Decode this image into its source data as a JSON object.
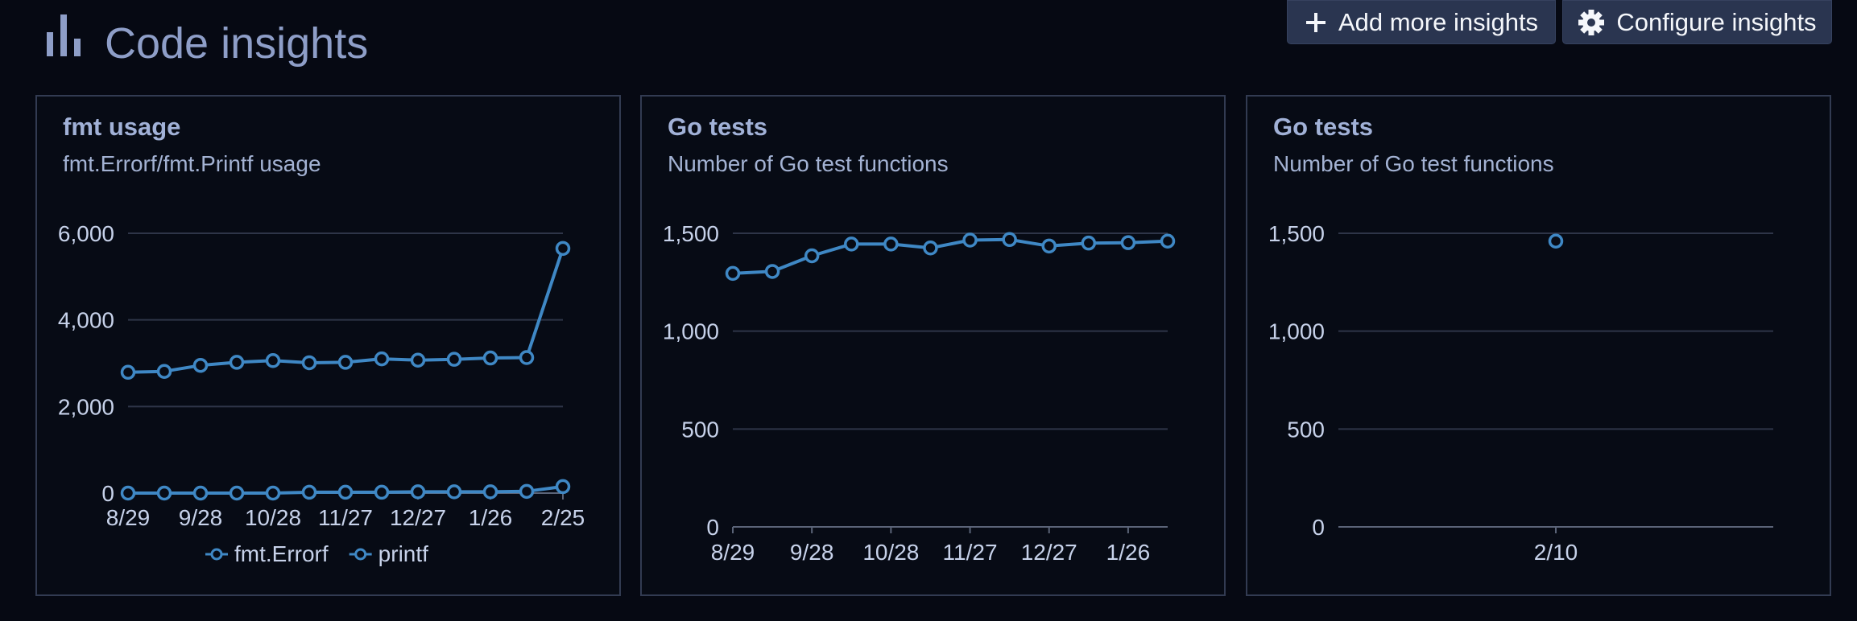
{
  "header": {
    "title": "Code insights",
    "icon": "bar-chart-icon",
    "add_button_label": "Add more insights",
    "configure_button_label": "Configure insights"
  },
  "colors": {
    "background": "#060913",
    "series": "#3f88c5",
    "grid": "#2e3548",
    "button_bg": "#2a3550"
  },
  "cards": [
    {
      "title": "fmt usage",
      "subtitle": "fmt.Errorf/fmt.Printf usage"
    },
    {
      "title": "Go tests",
      "subtitle": "Number of Go test functions"
    },
    {
      "title": "Go tests",
      "subtitle": "Number of Go test functions"
    }
  ],
  "chart_data": [
    {
      "type": "line",
      "x": [
        "8/29",
        "9/13",
        "9/28",
        "10/13",
        "10/28",
        "11/12",
        "11/27",
        "12/12",
        "12/27",
        "1/11",
        "1/26",
        "2/10",
        "2/25"
      ],
      "x_tick_labels": [
        "8/29",
        "9/28",
        "10/28",
        "11/27",
        "12/27",
        "1/26",
        "2/25"
      ],
      "y_ticks": [
        0,
        2000,
        4000,
        6000
      ],
      "y_tick_labels": [
        "0",
        "2,000",
        "4,000",
        "6,000"
      ],
      "ylim": [
        0,
        6000
      ],
      "grid": true,
      "legend": "bottom",
      "series": [
        {
          "name": "fmt.Errorf",
          "values": [
            2790,
            2810,
            2950,
            3020,
            3060,
            3010,
            3020,
            3100,
            3070,
            3090,
            3120,
            3130,
            5650
          ]
        },
        {
          "name": "printf",
          "values": [
            0,
            0,
            0,
            0,
            0,
            20,
            20,
            20,
            30,
            30,
            30,
            40,
            150
          ]
        }
      ]
    },
    {
      "type": "line",
      "x": [
        "8/29",
        "9/13",
        "9/28",
        "10/13",
        "10/28",
        "11/12",
        "11/27",
        "12/12",
        "12/27",
        "1/11",
        "1/26",
        "2/10"
      ],
      "x_tick_labels": [
        "8/29",
        "9/28",
        "10/28",
        "11/27",
        "12/27",
        "1/26"
      ],
      "y_ticks": [
        0,
        500,
        1000,
        1500
      ],
      "y_tick_labels": [
        "0",
        "500",
        "1,000",
        "1,500"
      ],
      "ylim": [
        0,
        1500
      ],
      "grid": true,
      "series": [
        {
          "values": [
            1295,
            1305,
            1385,
            1445,
            1445,
            1425,
            1465,
            1468,
            1435,
            1450,
            1452,
            1460
          ]
        }
      ]
    },
    {
      "type": "scatter",
      "x": [
        "2/10"
      ],
      "x_tick_labels": [
        "2/10"
      ],
      "y_ticks": [
        0,
        500,
        1000,
        1500
      ],
      "y_tick_labels": [
        "0",
        "500",
        "1,000",
        "1,500"
      ],
      "ylim": [
        0,
        1500
      ],
      "grid": true,
      "series": [
        {
          "values": [
            1460
          ]
        }
      ]
    }
  ]
}
